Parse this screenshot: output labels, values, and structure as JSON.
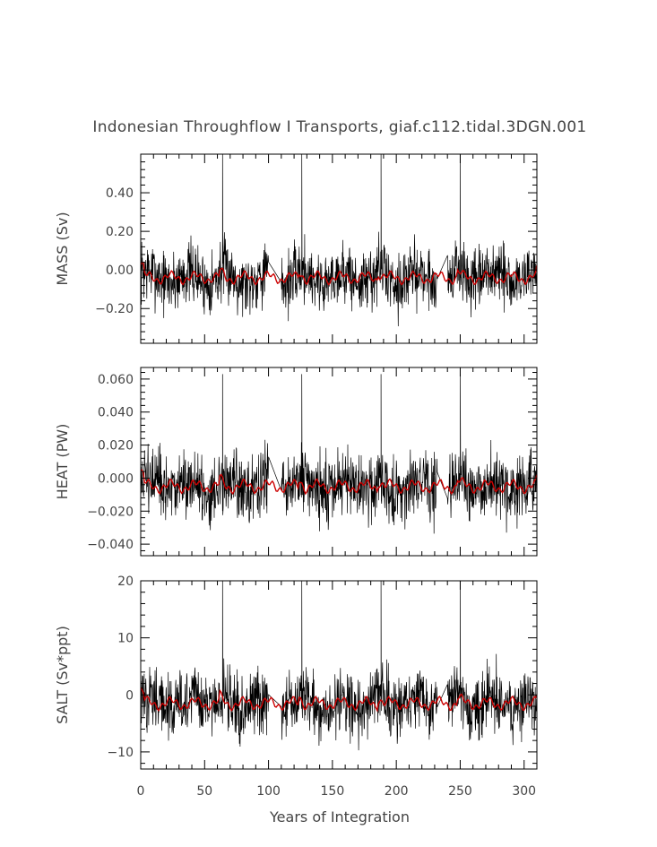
{
  "figure": {
    "title": "Indonesian Throughflow I Transports, giaf.c112.tidal.3DGN.001",
    "xlabel": "Years of Integration"
  },
  "chart_data": [
    {
      "type": "line",
      "ylabel": "MASS (Sv)",
      "ylim": [
        -0.38,
        0.6
      ],
      "yticks": [
        0.4,
        0.2,
        0.0,
        -0.2
      ],
      "yticklabels": [
        "0.40",
        "0.20",
        "0.00",
        "−0.20"
      ],
      "xlim": [
        0,
        310
      ],
      "xticks": [
        0,
        50,
        100,
        150,
        200,
        250,
        300
      ],
      "xticklabels": [],
      "raw_amplitude": 0.12,
      "mean_level": -0.04,
      "spike_peak": 0.6,
      "series": [
        {
          "color": "#000000"
        },
        {
          "color": "#cc0000"
        }
      ]
    },
    {
      "type": "line",
      "ylabel": "HEAT (PW)",
      "ylim": [
        -0.047,
        0.067
      ],
      "yticks": [
        0.06,
        0.04,
        0.02,
        0.0,
        -0.02,
        -0.04
      ],
      "yticklabels": [
        "0.060",
        "0.040",
        "0.020",
        "0.000",
        "−0.020",
        "−0.040"
      ],
      "xlim": [
        0,
        310
      ],
      "xticks": [
        0,
        50,
        100,
        150,
        200,
        250,
        300
      ],
      "xticklabels": [],
      "raw_amplitude": 0.015,
      "mean_level": -0.005,
      "spike_peak": 0.063,
      "series": [
        {
          "color": "#000000"
        },
        {
          "color": "#cc0000"
        }
      ]
    },
    {
      "type": "line",
      "ylabel": "SALT (Sv*ppt)",
      "ylim": [
        -13,
        20
      ],
      "yticks": [
        20,
        10,
        0,
        -10
      ],
      "yticklabels": [
        "20",
        "10",
        "0",
        "−10"
      ],
      "xlim": [
        0,
        310
      ],
      "xticks": [
        0,
        50,
        100,
        150,
        200,
        250,
        300
      ],
      "xticklabels": [
        "0",
        "50",
        "100",
        "150",
        "200",
        "250",
        "300"
      ],
      "raw_amplitude": 4.2,
      "mean_level": -1.5,
      "spike_peak": 20,
      "series": [
        {
          "color": "#000000"
        },
        {
          "color": "#cc0000"
        }
      ]
    }
  ]
}
